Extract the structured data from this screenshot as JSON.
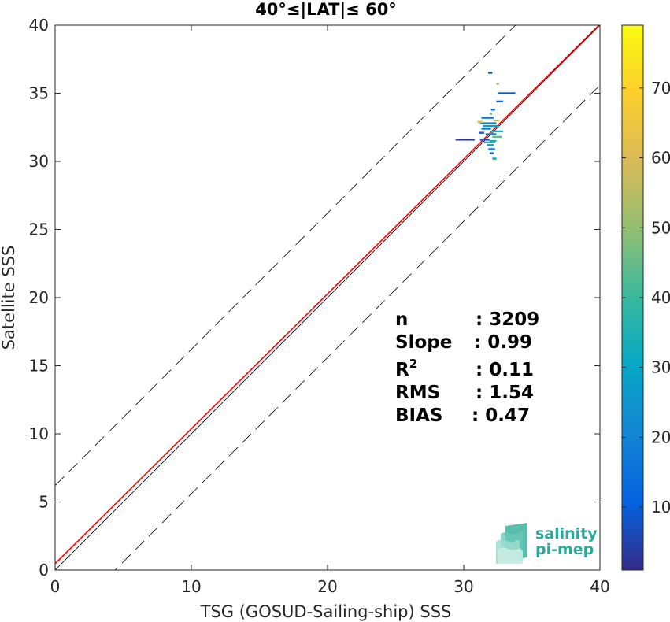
{
  "chart_data": {
    "type": "scatter",
    "title": "40°≤|LAT|≤ 60°",
    "xlabel": "TSG (GOSUD-Sailing-ship) SSS",
    "ylabel": "Satellite SSS",
    "xlim": [
      0,
      40
    ],
    "ylim": [
      0,
      40
    ],
    "xticks": [
      0,
      10,
      20,
      30,
      40
    ],
    "yticks": [
      0,
      5,
      10,
      15,
      20,
      25,
      30,
      35,
      40
    ],
    "grid": false,
    "reference_lines": {
      "identity": {
        "slope": 1,
        "intercept": 0,
        "color": "#000000"
      },
      "fit": {
        "slope": 0.99,
        "intercept": 0.47,
        "color": "#ff0000"
      },
      "upper_bound": {
        "slope": 1,
        "intercept": 6.2,
        "style": "dashed"
      },
      "lower_bound": {
        "slope": 1,
        "intercept": -4.4,
        "style": "dashed"
      }
    },
    "colorbar": {
      "range": [
        1,
        79
      ],
      "ticks": [
        10,
        20,
        30,
        40,
        50,
        60,
        70
      ],
      "colormap": "parula"
    },
    "points": [
      {
        "x": 31.2,
        "y": 31.6,
        "x2": 31.9,
        "c": 6
      },
      {
        "x": 29.4,
        "y": 31.6,
        "x2": 30.8,
        "c": 3
      },
      {
        "x": 32.5,
        "y": 35.0,
        "x2": 33.8,
        "c": 10
      },
      {
        "x": 32.4,
        "y": 34.4,
        "x2": 32.9,
        "c": 12
      },
      {
        "x": 31.8,
        "y": 36.5,
        "x2": 32.1,
        "c": 8
      },
      {
        "x": 31.3,
        "y": 33.2,
        "x2": 32.2,
        "c": 18
      },
      {
        "x": 31.2,
        "y": 32.8,
        "x2": 32.4,
        "c": 22
      },
      {
        "x": 31.4,
        "y": 32.6,
        "x2": 32.6,
        "c": 28
      },
      {
        "x": 31.3,
        "y": 32.4,
        "x2": 32.0,
        "c": 15
      },
      {
        "x": 32.0,
        "y": 32.2,
        "x2": 32.9,
        "c": 35
      },
      {
        "x": 31.6,
        "y": 32.0,
        "x2": 32.4,
        "c": 25
      },
      {
        "x": 32.1,
        "y": 31.8,
        "x2": 32.8,
        "c": 45
      },
      {
        "x": 31.5,
        "y": 31.4,
        "x2": 32.3,
        "c": 40
      },
      {
        "x": 31.7,
        "y": 31.2,
        "x2": 32.2,
        "c": 30
      },
      {
        "x": 31.8,
        "y": 30.9,
        "x2": 32.3,
        "c": 20
      },
      {
        "x": 31.9,
        "y": 30.6,
        "x2": 32.2,
        "c": 14
      },
      {
        "x": 32.1,
        "y": 30.2,
        "x2": 32.4,
        "c": 26
      },
      {
        "x": 32.0,
        "y": 33.8,
        "x2": 32.3,
        "c": 12
      },
      {
        "x": 31.9,
        "y": 33.5,
        "x2": 32.1,
        "c": 48
      },
      {
        "x": 32.2,
        "y": 33.0,
        "x2": 32.6,
        "c": 55
      },
      {
        "x": 31.0,
        "y": 32.9,
        "x2": 31.4,
        "c": 62
      },
      {
        "x": 31.1,
        "y": 32.1,
        "x2": 31.5,
        "c": 9
      },
      {
        "x": 32.4,
        "y": 35.7,
        "x2": 32.6,
        "c": 50
      },
      {
        "x": 31.9,
        "y": 31.5,
        "x2": 32.4,
        "c": 33
      }
    ],
    "stats": [
      {
        "label": "n",
        "value": ": 3209"
      },
      {
        "label": "Slope",
        "value": ": 0.99"
      },
      {
        "label": "R",
        "sup": "2",
        "value": ": 0.11"
      },
      {
        "label": "RMS",
        "value": ": 1.54"
      },
      {
        "label": "BIAS",
        "value": ": 0.47"
      }
    ]
  },
  "logo": {
    "line1": "salinity",
    "line2": "pi-mep"
  }
}
